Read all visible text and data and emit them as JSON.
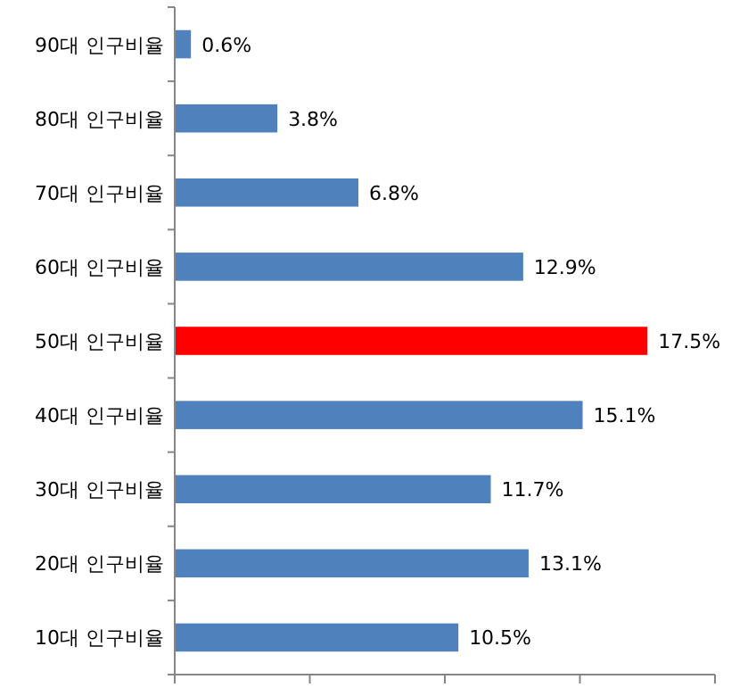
{
  "chart_data": {
    "type": "bar",
    "orientation": "horizontal",
    "categories": [
      "90대 인구비율",
      "80대 인구비율",
      "70대 인구비율",
      "60대 인구비율",
      "50대 인구비율",
      "40대 인구비율",
      "30대 인구비율",
      "20대 인구비율",
      "10대 인구비율"
    ],
    "values": [
      0.6,
      3.8,
      6.8,
      12.9,
      17.5,
      15.1,
      11.7,
      13.1,
      10.5
    ],
    "colors": [
      "#4f81bd",
      "#4f81bd",
      "#4f81bd",
      "#4f81bd",
      "#ff0000",
      "#4f81bd",
      "#4f81bd",
      "#4f81bd",
      "#4f81bd"
    ],
    "value_labels": [
      "0.6%",
      "3.8%",
      "6.8%",
      "12.9%",
      "17.5%",
      "15.1%",
      "11.7%",
      "13.1%",
      "10.5%"
    ],
    "xlim": [
      0,
      20
    ],
    "xticks": [
      {
        "value": 0,
        "label": null
      },
      {
        "value": 5,
        "label": null
      },
      {
        "value": 10,
        "label": null
      },
      {
        "value": 15,
        "label": null
      },
      {
        "value": 20,
        "label": null
      }
    ],
    "tick_labels": "y"
  }
}
